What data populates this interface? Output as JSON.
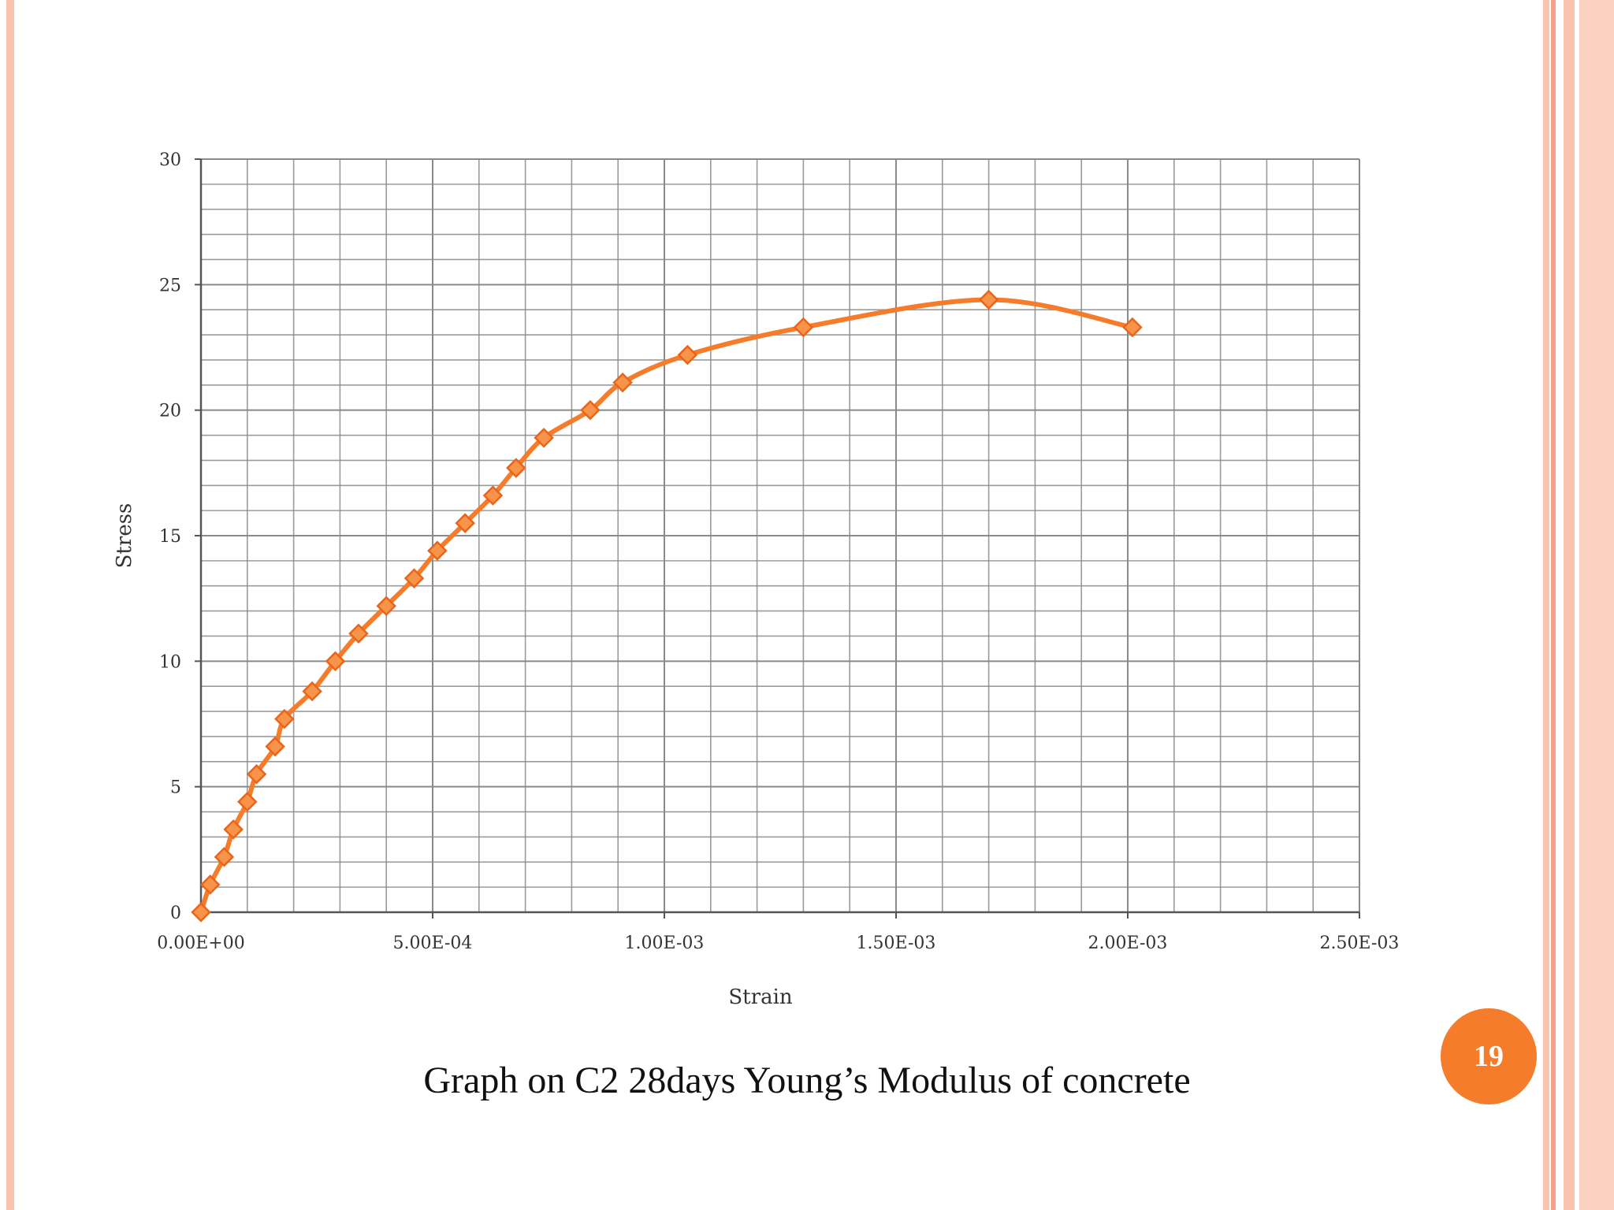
{
  "colors": {
    "accent": "#F57C2A",
    "marker_fill": "#F7944A",
    "marker_edge": "#E8651A",
    "border_light": "#F9C3AE",
    "border_mid": "#F3A488",
    "grid": "#8A8A8A"
  },
  "slide": {
    "caption": "Graph on C2 28days Young’s Modulus of concrete",
    "page_number": "19"
  },
  "chart_data": {
    "type": "line",
    "xlabel": "Strain",
    "ylabel": "Stress",
    "xlim": [
      0,
      0.0025
    ],
    "ylim": [
      0,
      30
    ],
    "x_tick_labels": [
      "0.00E+00",
      "5.00E-04",
      "1.00E-03",
      "1.50E-03",
      "2.00E-03",
      "2.50E-03"
    ],
    "y_tick_labels": [
      "0",
      "5",
      "10",
      "15",
      "20",
      "25",
      "30"
    ],
    "grid": true,
    "legend": false,
    "marker": "diamond",
    "series": [
      {
        "x": [
          0,
          2e-05,
          5e-05,
          7e-05,
          0.0001,
          0.00012,
          0.00016,
          0.00018,
          0.00024,
          0.00029,
          0.00034,
          0.0004,
          0.00046,
          0.00051,
          0.00057,
          0.00063,
          0.00068,
          0.00074,
          0.00084,
          0.00091,
          0.00105,
          0.0013,
          0.0017,
          0.00201
        ],
        "y": [
          0,
          1.1,
          2.2,
          3.3,
          4.4,
          5.5,
          6.6,
          7.7,
          8.8,
          10.0,
          11.1,
          12.2,
          13.3,
          14.4,
          15.5,
          16.6,
          17.7,
          18.9,
          20.0,
          21.1,
          22.2,
          23.3,
          24.4,
          23.3
        ]
      }
    ]
  }
}
